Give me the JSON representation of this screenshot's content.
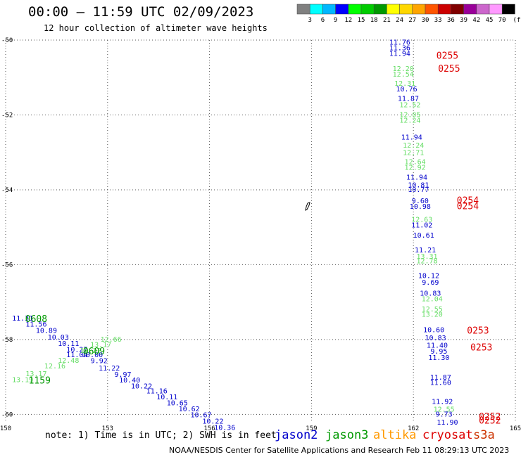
{
  "header": {
    "title": "00:00 – 11:59 UTC 02/09/2023",
    "subtitle": "12 hour collection of altimeter wave heights"
  },
  "colorbar": {
    "unit": "(ft)",
    "ticks": [
      "3",
      "6",
      "9",
      "12",
      "15",
      "18",
      "21",
      "24",
      "27",
      "30",
      "33",
      "36",
      "39",
      "42",
      "45",
      "70"
    ],
    "colors": [
      "#808080",
      "#00ffff",
      "#00b7ff",
      "#0000ff",
      "#00ff00",
      "#00cc00",
      "#009900",
      "#ffff00",
      "#ffd700",
      "#ffa500",
      "#ff5500",
      "#cc0000",
      "#800000",
      "#990099",
      "#cc66cc",
      "#ff99ff",
      "#000000"
    ]
  },
  "axes": {
    "x_ticks": [
      "150",
      "153",
      "156",
      "159",
      "162",
      "165"
    ],
    "y_ticks": [
      "-50",
      "-52",
      "-54",
      "-56",
      "-58",
      "-60"
    ]
  },
  "colors": {
    "jason2": "#0000cc",
    "jason3": "#009900",
    "jason3_light": "#66dd66",
    "altika": "#ff9900",
    "cryosat": "#dd0000",
    "s3a": "#cc3300"
  },
  "measurements": [
    {
      "lon": 161.6,
      "lat": -50.05,
      "label": "11.76",
      "sat": "jason2"
    },
    {
      "lon": 161.6,
      "lat": -50.2,
      "label": "11.36",
      "sat": "jason2"
    },
    {
      "lon": 161.6,
      "lat": -50.35,
      "label": "11.94",
      "sat": "jason2"
    },
    {
      "lon": 161.7,
      "lat": -50.75,
      "label": "12.20",
      "sat": "jason3_light"
    },
    {
      "lon": 161.7,
      "lat": -50.9,
      "label": "12.54",
      "sat": "jason3_light"
    },
    {
      "lon": 161.75,
      "lat": -51.15,
      "label": "12.31",
      "sat": "jason3_light"
    },
    {
      "lon": 161.8,
      "lat": -51.3,
      "label": "10.76",
      "sat": "jason2"
    },
    {
      "lon": 161.85,
      "lat": -51.55,
      "label": "11.87",
      "sat": "jason2"
    },
    {
      "lon": 161.9,
      "lat": -51.72,
      "label": "12.52",
      "sat": "jason3_light"
    },
    {
      "lon": 161.9,
      "lat": -51.98,
      "label": "12.05",
      "sat": "jason3_light"
    },
    {
      "lon": 161.9,
      "lat": -52.13,
      "label": "12.24",
      "sat": "jason3_light"
    },
    {
      "lon": 161.95,
      "lat": -52.58,
      "label": "11.94",
      "sat": "jason2"
    },
    {
      "lon": 162.0,
      "lat": -52.8,
      "label": "12.24",
      "sat": "jason3_light"
    },
    {
      "lon": 162.0,
      "lat": -53.0,
      "label": "12.71",
      "sat": "jason3_light"
    },
    {
      "lon": 162.05,
      "lat": -53.24,
      "label": "12.64",
      "sat": "jason3_light"
    },
    {
      "lon": 162.05,
      "lat": -53.39,
      "label": "12.92",
      "sat": "jason3_light"
    },
    {
      "lon": 162.1,
      "lat": -53.65,
      "label": "11.94",
      "sat": "jason2"
    },
    {
      "lon": 162.15,
      "lat": -53.86,
      "label": "10.81",
      "sat": "jason2"
    },
    {
      "lon": 162.15,
      "lat": -53.98,
      "label": "10.77",
      "sat": "jason2"
    },
    {
      "lon": 162.2,
      "lat": -54.28,
      "label": "9.60",
      "sat": "jason2"
    },
    {
      "lon": 162.2,
      "lat": -54.43,
      "label": "10.98",
      "sat": "jason2"
    },
    {
      "lon": 162.25,
      "lat": -54.78,
      "label": "12.63",
      "sat": "jason3_light"
    },
    {
      "lon": 162.25,
      "lat": -54.93,
      "label": "11.02",
      "sat": "jason2"
    },
    {
      "lon": 162.3,
      "lat": -55.2,
      "label": "10.61",
      "sat": "jason2"
    },
    {
      "lon": 162.35,
      "lat": -55.6,
      "label": "11.21",
      "sat": "jason2"
    },
    {
      "lon": 162.4,
      "lat": -55.77,
      "label": "13.31",
      "sat": "jason3_light"
    },
    {
      "lon": 162.4,
      "lat": -55.89,
      "label": "12.78",
      "sat": "jason3_light"
    },
    {
      "lon": 162.45,
      "lat": -56.28,
      "label": "10.12",
      "sat": "jason2"
    },
    {
      "lon": 162.5,
      "lat": -56.46,
      "label": "9.69",
      "sat": "jason2"
    },
    {
      "lon": 162.5,
      "lat": -56.75,
      "label": "10.83",
      "sat": "jason2"
    },
    {
      "lon": 162.55,
      "lat": -56.9,
      "label": "12.04",
      "sat": "jason3_light"
    },
    {
      "lon": 162.55,
      "lat": -57.18,
      "label": "12.55",
      "sat": "jason3_light"
    },
    {
      "lon": 162.55,
      "lat": -57.32,
      "label": "13.20",
      "sat": "jason3_light"
    },
    {
      "lon": 162.6,
      "lat": -57.73,
      "label": "10.60",
      "sat": "jason2"
    },
    {
      "lon": 162.65,
      "lat": -57.95,
      "label": "10.83",
      "sat": "jason2"
    },
    {
      "lon": 162.7,
      "lat": -58.14,
      "label": "11.40",
      "sat": "jason2"
    },
    {
      "lon": 162.75,
      "lat": -58.3,
      "label": "9.95",
      "sat": "jason2"
    },
    {
      "lon": 162.75,
      "lat": -58.47,
      "label": "11.30",
      "sat": "jason2"
    },
    {
      "lon": 162.8,
      "lat": -59.0,
      "label": "11.87",
      "sat": "jason2"
    },
    {
      "lon": 162.8,
      "lat": -59.14,
      "label": "11.60",
      "sat": "jason2"
    },
    {
      "lon": 162.85,
      "lat": -59.65,
      "label": "11.92",
      "sat": "jason2"
    },
    {
      "lon": 162.9,
      "lat": -59.85,
      "label": "12.55",
      "sat": "jason3_light"
    },
    {
      "lon": 162.9,
      "lat": -59.98,
      "label": "9.73",
      "sat": "jason2"
    },
    {
      "lon": 163.0,
      "lat": -60.2,
      "label": "11.90",
      "sat": "jason2"
    },
    {
      "lon": 150.5,
      "lat": -57.42,
      "label": "11.31",
      "sat": "jason2"
    },
    {
      "lon": 150.9,
      "lat": -57.58,
      "label": "11.56",
      "sat": "jason2"
    },
    {
      "lon": 151.2,
      "lat": -57.75,
      "label": "10.89",
      "sat": "jason2"
    },
    {
      "lon": 151.55,
      "lat": -57.93,
      "label": "10.03",
      "sat": "jason2"
    },
    {
      "lon": 151.85,
      "lat": -58.1,
      "label": "10.11",
      "sat": "jason2"
    },
    {
      "lon": 152.1,
      "lat": -58.26,
      "label": "10.27",
      "sat": "jason2"
    },
    {
      "lon": 152.1,
      "lat": -58.4,
      "label": "11.04",
      "sat": "jason2"
    },
    {
      "lon": 152.55,
      "lat": -58.4,
      "label": "10.00",
      "sat": "jason2"
    },
    {
      "lon": 152.75,
      "lat": -58.56,
      "label": "9.92",
      "sat": "jason2"
    },
    {
      "lon": 153.05,
      "lat": -58.75,
      "label": "11.22",
      "sat": "jason2"
    },
    {
      "lon": 153.45,
      "lat": -58.92,
      "label": "9.97",
      "sat": "jason2"
    },
    {
      "lon": 153.65,
      "lat": -59.07,
      "label": "10.40",
      "sat": "jason2"
    },
    {
      "lon": 154.0,
      "lat": -59.23,
      "label": "10.22",
      "sat": "jason2"
    },
    {
      "lon": 154.45,
      "lat": -59.36,
      "label": "11.16",
      "sat": "jason2"
    },
    {
      "lon": 154.75,
      "lat": -59.52,
      "label": "10.11",
      "sat": "jason2"
    },
    {
      "lon": 155.05,
      "lat": -59.68,
      "label": "10.65",
      "sat": "jason2"
    },
    {
      "lon": 155.4,
      "lat": -59.84,
      "label": "10.62",
      "sat": "jason2"
    },
    {
      "lon": 155.75,
      "lat": -60.0,
      "label": "10.67",
      "sat": "jason2"
    },
    {
      "lon": 156.1,
      "lat": -60.17,
      "label": "10.22",
      "sat": "jason2"
    },
    {
      "lon": 156.45,
      "lat": -60.34,
      "label": "10.36",
      "sat": "jason2"
    },
    {
      "lon": 153.1,
      "lat": -57.98,
      "label": "12.66",
      "sat": "jason3_light"
    },
    {
      "lon": 152.8,
      "lat": -58.12,
      "label": "13.17",
      "sat": "jason3_light"
    },
    {
      "lon": 152.5,
      "lat": -58.28,
      "label": "12.22",
      "sat": "jason3_light"
    },
    {
      "lon": 151.85,
      "lat": -58.55,
      "label": "12.48",
      "sat": "jason3_light"
    },
    {
      "lon": 151.45,
      "lat": -58.7,
      "label": "12.16",
      "sat": "jason3_light"
    },
    {
      "lon": 150.9,
      "lat": -58.9,
      "label": "13.17",
      "sat": "jason3_light"
    },
    {
      "lon": 150.5,
      "lat": -59.06,
      "label": "13.19",
      "sat": "jason3_light"
    }
  ],
  "times": [
    {
      "lon": 163.0,
      "lat": -50.4,
      "label": "0255",
      "sat": "cryosat"
    },
    {
      "lon": 163.05,
      "lat": -50.75,
      "label": "0255",
      "sat": "cryosat"
    },
    {
      "lon": 163.6,
      "lat": -54.27,
      "label": "0254",
      "sat": "cryosat"
    },
    {
      "lon": 163.6,
      "lat": -54.42,
      "label": "0254",
      "sat": "cryosat"
    },
    {
      "lon": 163.9,
      "lat": -57.75,
      "label": "0253",
      "sat": "cryosat"
    },
    {
      "lon": 164.0,
      "lat": -58.2,
      "label": "0253",
      "sat": "cryosat"
    },
    {
      "lon": 164.25,
      "lat": -60.05,
      "label": "0252",
      "sat": "cryosat"
    },
    {
      "lon": 164.25,
      "lat": -60.15,
      "label": "0252",
      "sat": "cryosat"
    },
    {
      "lon": 150.9,
      "lat": -57.44,
      "label": "0608",
      "sat": "jason3"
    },
    {
      "lon": 152.6,
      "lat": -58.3,
      "label": "0609",
      "sat": "jason3"
    },
    {
      "lon": 151.0,
      "lat": -59.08,
      "label": "1159",
      "sat": "jason3"
    }
  ],
  "legend": {
    "note": "note: 1) Time is in UTC; 2) SWH is in feet",
    "sats": [
      {
        "label": "jason2",
        "color": "#0000cc"
      },
      {
        "label": "jason3",
        "color": "#009900"
      },
      {
        "label": "altika",
        "color": "#ff9900"
      },
      {
        "label": "cryosat",
        "color": "#dd0000"
      },
      {
        "label": "s3a",
        "color": "#cc3300"
      }
    ]
  },
  "footer": "NOAA/NESDIS Center for Satellite Applications and Research   Feb 11 08:29:13 UTC 2023"
}
